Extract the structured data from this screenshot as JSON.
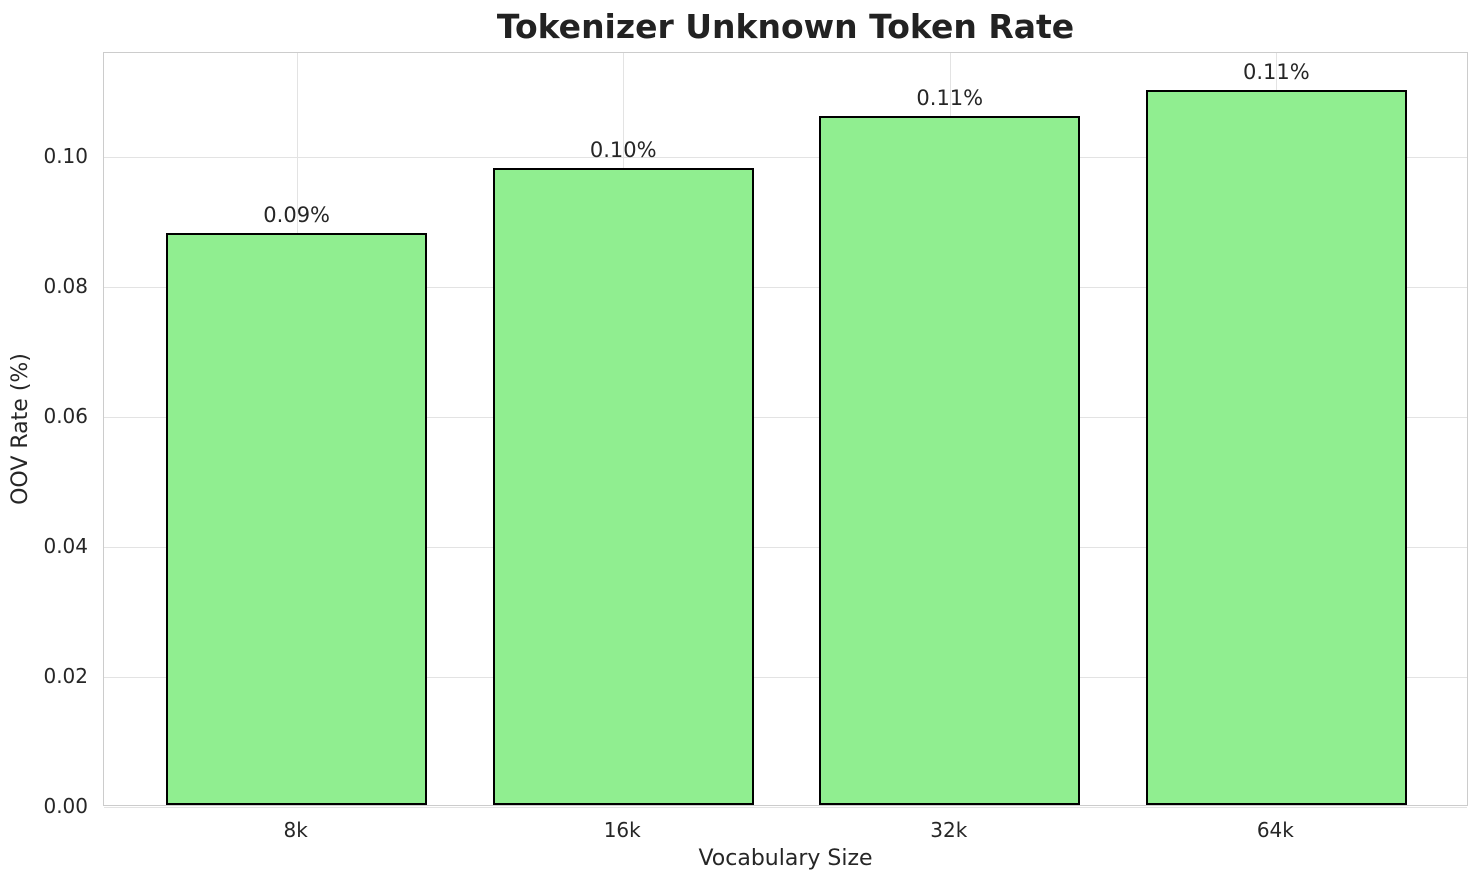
{
  "chart_data": {
    "type": "bar",
    "title": "Tokenizer Unknown Token Rate",
    "xlabel": "Vocabulary Size",
    "ylabel": "OOV Rate (%)",
    "categories": [
      "8k",
      "16k",
      "32k",
      "64k"
    ],
    "values": [
      0.088,
      0.098,
      0.106,
      0.11
    ],
    "bar_labels": [
      "0.09%",
      "0.10%",
      "0.11%",
      "0.11%"
    ],
    "y_ticks": [
      0.0,
      0.02,
      0.04,
      0.06,
      0.08,
      0.1
    ],
    "y_tick_labels": [
      "0.00",
      "0.02",
      "0.04",
      "0.06",
      "0.08",
      "0.10"
    ],
    "ylim": [
      0,
      0.116
    ],
    "xlim": [
      -0.59,
      3.59
    ],
    "bar_width_data_units": 0.8,
    "grid": "both",
    "legend": "none",
    "colors": {
      "bar_fill": "#90EE90",
      "bar_edge": "#000000",
      "grid": "#e3e3e3",
      "spine": "#cccccc",
      "text": "#262626",
      "title_text": "#222222",
      "background": "#ffffff"
    }
  }
}
